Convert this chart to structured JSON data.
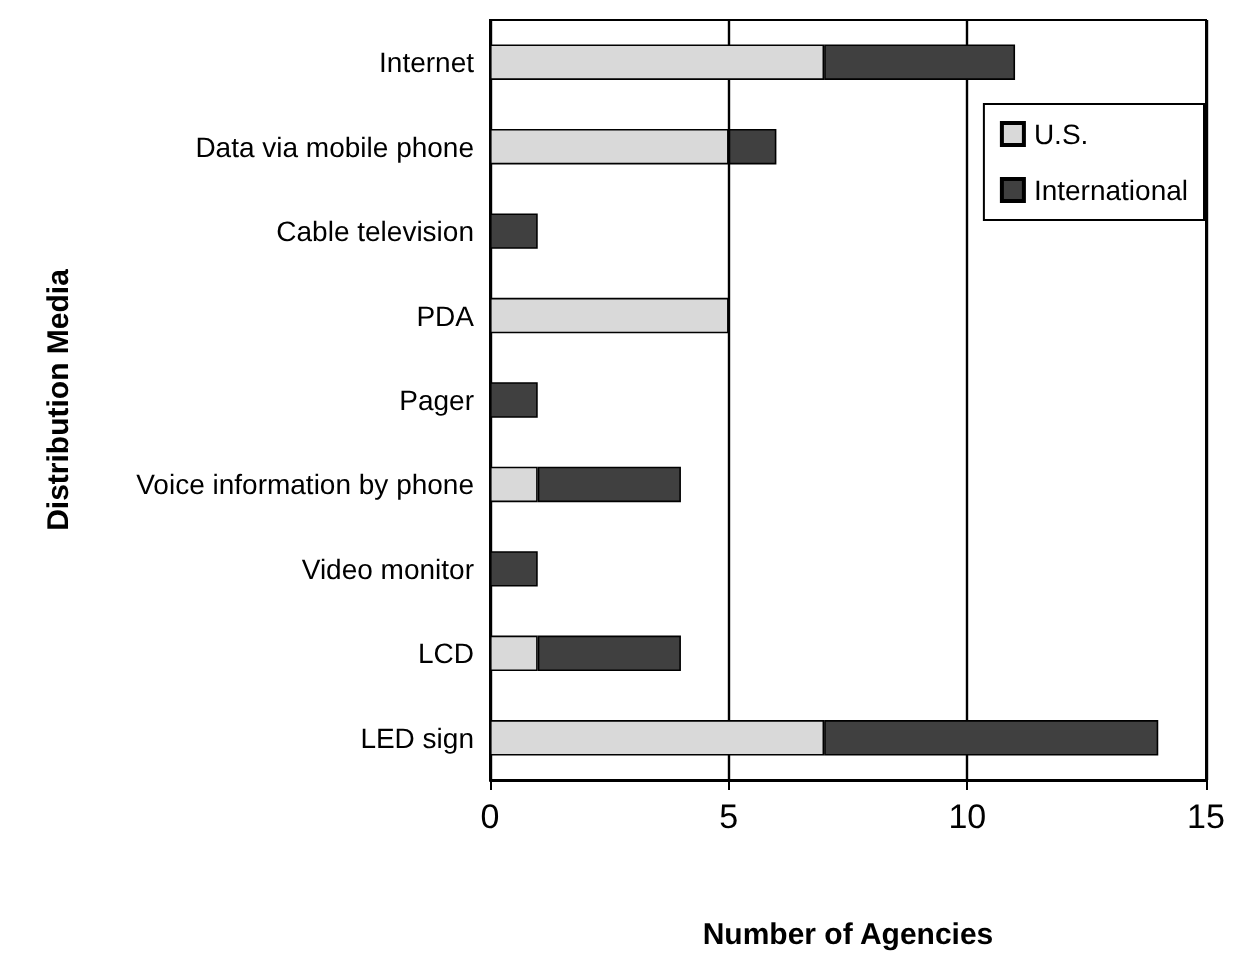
{
  "chart_data": {
    "type": "bar",
    "orientation": "horizontal",
    "stacked": true,
    "xlabel": "Number of Agencies",
    "ylabel": "Distribution Media",
    "categories": [
      "Internet",
      "Data via mobile phone",
      "Cable television",
      "PDA",
      "Pager",
      "Voice information by phone",
      "Video monitor",
      "LCD",
      "LED sign"
    ],
    "series": [
      {
        "name": "U.S.",
        "color": "#d9d9d9",
        "values": [
          7,
          5,
          0,
          5,
          0,
          1,
          0,
          1,
          7
        ]
      },
      {
        "name": "International",
        "color": "#404040",
        "values": [
          4,
          1,
          1,
          0,
          1,
          3,
          1,
          3,
          7
        ]
      }
    ],
    "xlim": [
      0,
      15
    ],
    "xticks": [
      0,
      5,
      10,
      15
    ],
    "grid": "x",
    "legend": "top right"
  }
}
